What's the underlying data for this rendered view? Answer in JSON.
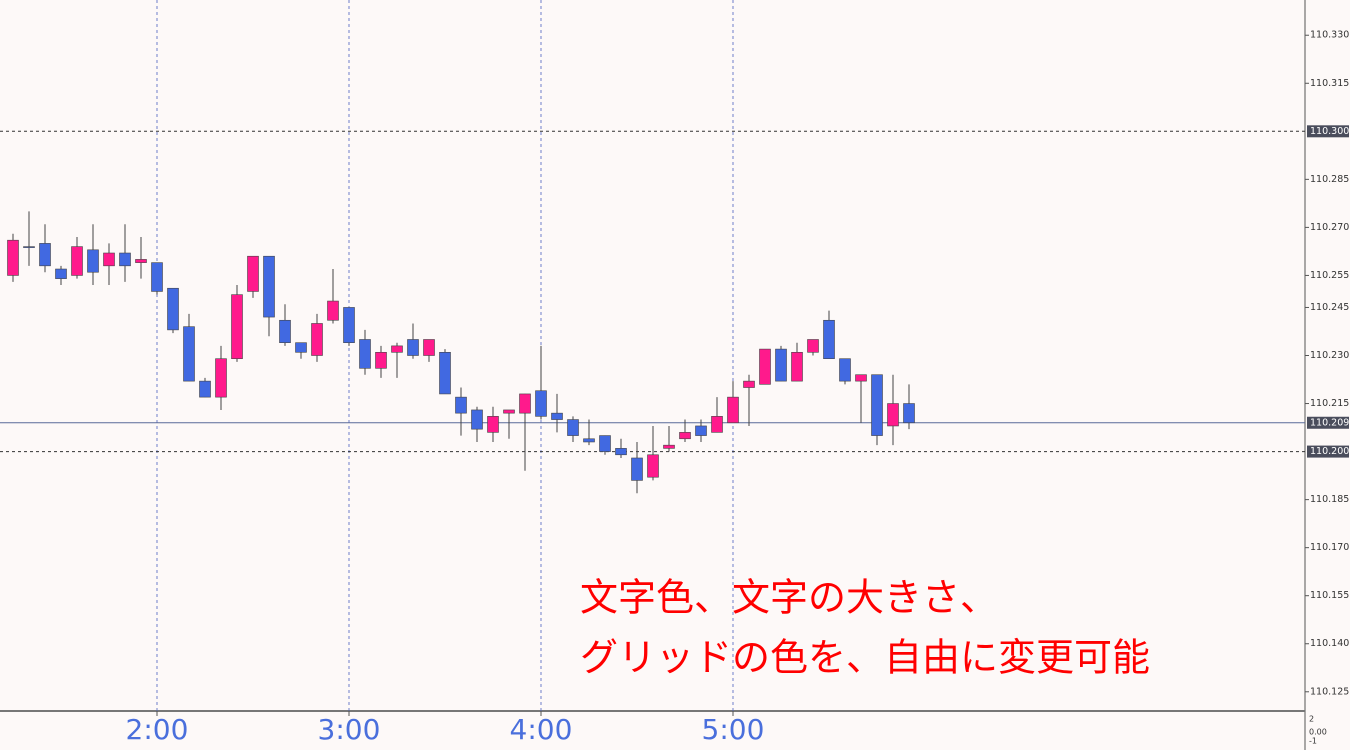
{
  "chart_data": {
    "type": "candlestick",
    "categories": [
      null,
      null,
      null,
      null,
      null,
      null,
      null,
      null,
      null,
      "2:00",
      null,
      null,
      null,
      null,
      null,
      null,
      null,
      null,
      null,
      null,
      null,
      "3:00",
      null,
      null,
      null,
      null,
      null,
      null,
      null,
      null,
      null,
      null,
      null,
      "4:00",
      null,
      null,
      null,
      null,
      null,
      null,
      null,
      null,
      null,
      null,
      null,
      "5:00",
      null,
      null,
      null,
      null,
      null,
      null,
      null,
      null,
      null,
      null,
      null
    ],
    "open": [
      110.255,
      110.264,
      110.265,
      110.257,
      110.255,
      110.263,
      110.258,
      110.262,
      110.259,
      110.259,
      110.251,
      110.239,
      110.222,
      110.217,
      110.229,
      110.25,
      110.261,
      110.241,
      110.234,
      110.23,
      110.241,
      110.245,
      110.235,
      110.226,
      110.231,
      110.235,
      110.23,
      110.231,
      110.217,
      110.213,
      110.206,
      110.212,
      110.212,
      110.219,
      110.212,
      110.21,
      110.204,
      110.205,
      110.201,
      110.198,
      110.192,
      110.201,
      110.204,
      110.208,
      110.206,
      110.209,
      110.22,
      110.221,
      110.232,
      110.222,
      110.231,
      110.241,
      110.229,
      110.222,
      110.224,
      110.208,
      110.215
    ],
    "high": [
      110.268,
      110.275,
      110.271,
      110.258,
      110.267,
      110.271,
      110.265,
      110.271,
      110.267,
      110.259,
      110.251,
      110.243,
      110.223,
      110.233,
      110.252,
      110.261,
      110.261,
      110.246,
      110.234,
      110.243,
      110.257,
      110.245,
      110.238,
      110.233,
      110.234,
      110.24,
      110.235,
      110.232,
      110.22,
      110.214,
      110.214,
      110.213,
      110.218,
      110.233,
      110.218,
      110.211,
      110.21,
      110.205,
      110.204,
      110.203,
      110.208,
      110.208,
      110.21,
      110.21,
      110.217,
      110.222,
      110.224,
      110.232,
      110.233,
      110.234,
      110.235,
      110.244,
      110.229,
      110.224,
      110.224,
      110.224,
      110.221
    ],
    "low": [
      110.253,
      110.258,
      110.256,
      110.252,
      110.254,
      110.252,
      110.252,
      110.253,
      110.254,
      110.249,
      110.237,
      110.222,
      110.217,
      110.213,
      110.228,
      110.248,
      110.236,
      110.233,
      110.229,
      110.228,
      110.24,
      110.233,
      110.224,
      110.223,
      110.223,
      110.229,
      110.228,
      110.218,
      110.205,
      110.203,
      110.203,
      110.204,
      110.194,
      110.21,
      110.206,
      110.203,
      110.202,
      110.199,
      110.198,
      110.187,
      110.191,
      110.2,
      110.203,
      110.203,
      110.206,
      110.209,
      110.208,
      110.221,
      110.222,
      110.222,
      110.23,
      110.229,
      110.221,
      110.209,
      110.202,
      110.202,
      110.207
    ],
    "close": [
      110.266,
      110.264,
      110.258,
      110.254,
      110.264,
      110.256,
      110.262,
      110.258,
      110.26,
      110.25,
      110.238,
      110.222,
      110.217,
      110.229,
      110.249,
      110.261,
      110.242,
      110.234,
      110.231,
      110.24,
      110.247,
      110.234,
      110.226,
      110.231,
      110.233,
      110.23,
      110.235,
      110.218,
      110.212,
      110.207,
      110.211,
      110.213,
      110.218,
      110.211,
      110.21,
      110.205,
      110.203,
      110.2,
      110.199,
      110.191,
      110.199,
      110.202,
      110.206,
      110.205,
      110.211,
      110.217,
      110.222,
      110.232,
      110.222,
      110.231,
      110.235,
      110.229,
      110.222,
      110.224,
      110.205,
      110.215,
      110.209
    ],
    "up_color": "#ff1a8c",
    "down_color": "#4169e1",
    "ylim": [
      110.119,
      110.341
    ],
    "yticks": [
      {
        "value": 110.33,
        "label": "110.330"
      },
      110.315,
      110.285,
      {
        "value": 110.27,
        "label": "110.270"
      },
      110.255,
      110.245,
      {
        "value": 110.23,
        "label": "110.230"
      },
      110.215,
      110.185,
      {
        "value": 110.17,
        "label": "110.170"
      },
      110.155,
      {
        "value": 110.14,
        "label": "110.140"
      },
      110.125
    ],
    "hlines": [
      {
        "value": 110.3,
        "label": "110.300"
      },
      {
        "value": 110.2,
        "label": "110.200"
      }
    ],
    "current_price": {
      "value": 110.209,
      "label": "110.209"
    },
    "x_grid": true,
    "annotation": [
      "文字色、文字の大きさ、",
      "グリッドの色を、自由に変更可能"
    ],
    "subpanel_labels": [
      "2",
      "0.00",
      "-1"
    ]
  }
}
